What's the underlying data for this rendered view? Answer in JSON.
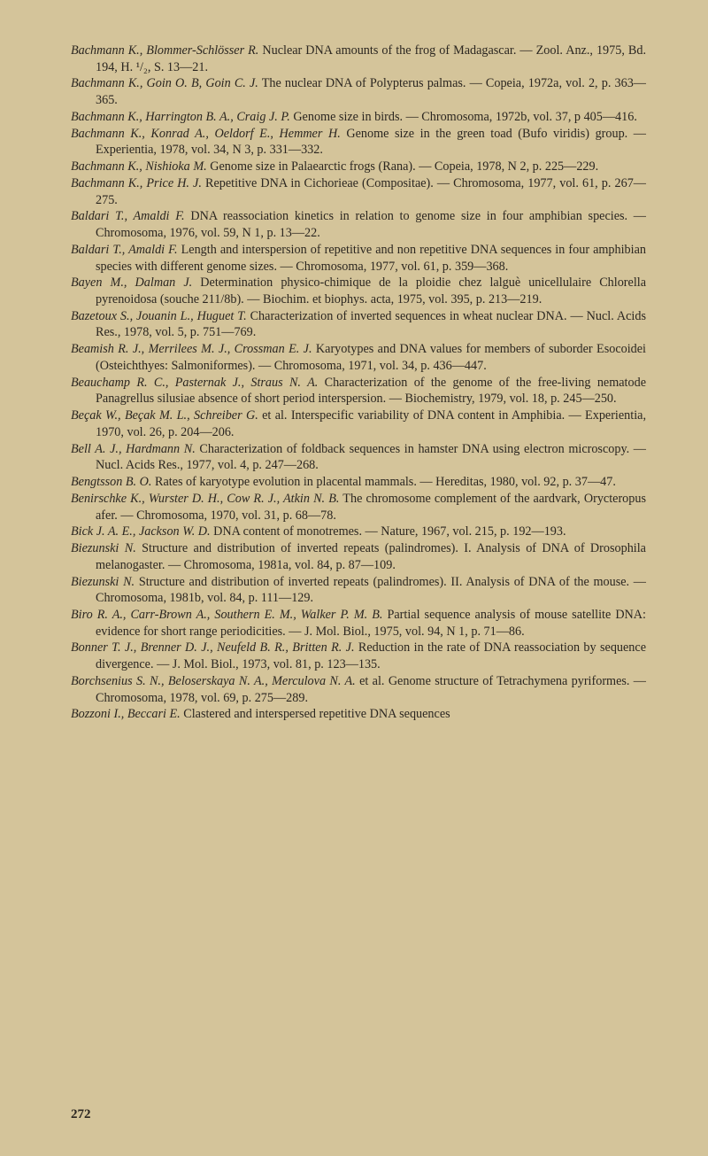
{
  "page": {
    "number": "272",
    "background_color": "#d4c49a",
    "text_color": "#2b2620",
    "font_size": 14.2,
    "line_height": 1.32
  },
  "references": [
    {
      "authors": "Bachmann K., Blommer-Schlösser R.",
      "text": " Nuclear DNA amounts of the frog of Madagascar. — Zool. Anz., 1975, Bd. 194, H. ¹/₂, S. 13—21."
    },
    {
      "authors": "Bachmann K., Goin O. B, Goin C. J.",
      "text": " The nuclear DNA of Polypterus palmas. — Copeia, 1972a, vol. 2, p. 363—365."
    },
    {
      "authors": "Bachmann K., Harrington B. A., Craig J. P.",
      "text": " Genome size in birds. — Chromosoma, 1972b, vol. 37, p 405—416."
    },
    {
      "authors": "Bachmann K., Konrad A., Oeldorf E., Hemmer H.",
      "text": " Genome size in the green toad (Bufo viridis) group. — Experientia, 1978, vol. 34, N 3, p. 331—332."
    },
    {
      "authors": "Bachmann K., Nishioka M.",
      "text": " Genome size in Palaearctic frogs (Rana). — Copeia, 1978, N 2, p. 225—229."
    },
    {
      "authors": "Bachmann K., Price H. J.",
      "text": " Repetitive DNA in Cichorieae (Compositae). — Chromosoma, 1977, vol. 61, p. 267—275."
    },
    {
      "authors": "Baldari T., Amaldi F.",
      "text": " DNA reassociation kinetics in relation to genome size in four amphibian species. — Chromosoma, 1976, vol. 59, N 1, p. 13—22."
    },
    {
      "authors": "Baldari T., Amaldi F.",
      "text": " Length and interspersion of repetitive and non repetitive DNA sequences in four amphibian species with different genome sizes. — Chromosoma, 1977, vol. 61, p. 359—368."
    },
    {
      "authors": "Bayen M., Dalman J.",
      "text": " Determination physico-chimique de la ploidie chez lalguè unicellulaire Chlorella pyrenoidosa (souche 211/8b). — Biochim. et biophys. acta, 1975, vol. 395, p. 213—219."
    },
    {
      "authors": "Bazetoux S., Jouanin L., Huguet T.",
      "text": " Characterization of inverted sequences in wheat nuclear DNA. — Nucl. Acids Res., 1978, vol. 5, p. 751—769."
    },
    {
      "authors": "Beamish R. J., Merrilees M. J., Crossman E. J.",
      "text": " Karyotypes and DNA values for members of suborder Esocoidei (Osteichthyes: Salmoniformes). — Chromosoma, 1971, vol. 34, p. 436—447."
    },
    {
      "authors": "Beauchamp R. C., Pasternak J., Straus N. A.",
      "text": " Characterization of the genome of the free-living nematode Panagrellus silusiae absence of short period interspersion. — Biochemistry, 1979, vol. 18, p. 245—250."
    },
    {
      "authors": "Beçak W., Beçak M. L., Schreiber G.",
      "text": " et al. Interspecific variability of DNA content in Amphibia. — Experientia, 1970, vol. 26, p. 204—206."
    },
    {
      "authors": "Bell A. J., Hardmann N.",
      "text": " Characterization of foldback sequences in hamster DNA using electron microscopy. — Nucl. Acids Res., 1977, vol. 4, p. 247—268."
    },
    {
      "authors": "Bengtsson B. O.",
      "text": " Rates of karyotype evolution in placental mammals. — Hereditas, 1980, vol. 92, p. 37—47."
    },
    {
      "authors": "Benirschke K., Wurster D. H., Cow R. J., Atkin N. B.",
      "text": " The chromosome complement of the aardvark, Orycteropus afer. — Chromosoma, 1970, vol. 31, p. 68—78."
    },
    {
      "authors": "Bick J. A. E., Jackson W. D.",
      "text": " DNA content of monotremes. — Nature, 1967, vol. 215, p. 192—193."
    },
    {
      "authors": "Biezunski N.",
      "text": " Structure and distribution of inverted repeats (palindromes). I. Analysis of DNA of Drosophila melanogaster. — Chromosoma, 1981a, vol. 84, p. 87—109."
    },
    {
      "authors": "Biezunski N.",
      "text": " Structure and distribution of inverted repeats (palindromes). II. Analysis of DNA of the mouse. — Chromosoma, 1981b, vol. 84, p. 111—129."
    },
    {
      "authors": "Biro R. A., Carr-Brown A., Southern E. M., Walker P. M. B.",
      "text": " Partial sequence analysis of mouse satellite DNA: evidence for short range periodicities. — J. Mol. Biol., 1975, vol. 94, N 1, p. 71—86."
    },
    {
      "authors": "Bonner T. J., Brenner D. J., Neufeld B. R., Britten R. J.",
      "text": " Reduction in the rate of DNA reassociation by sequence divergence. — J. Mol. Biol., 1973, vol. 81, p. 123—135."
    },
    {
      "authors": "Borchsenius S. N., Beloserskaya N. A., Merculova N. A.",
      "text": " et al. Genome structure of Tetrachymena pyriformes. — Chromosoma, 1978, vol. 69, p. 275—289."
    },
    {
      "authors": "Bozzoni I., Beccari E.",
      "text": " Clastered and interspersed repetitive DNA sequences"
    }
  ]
}
